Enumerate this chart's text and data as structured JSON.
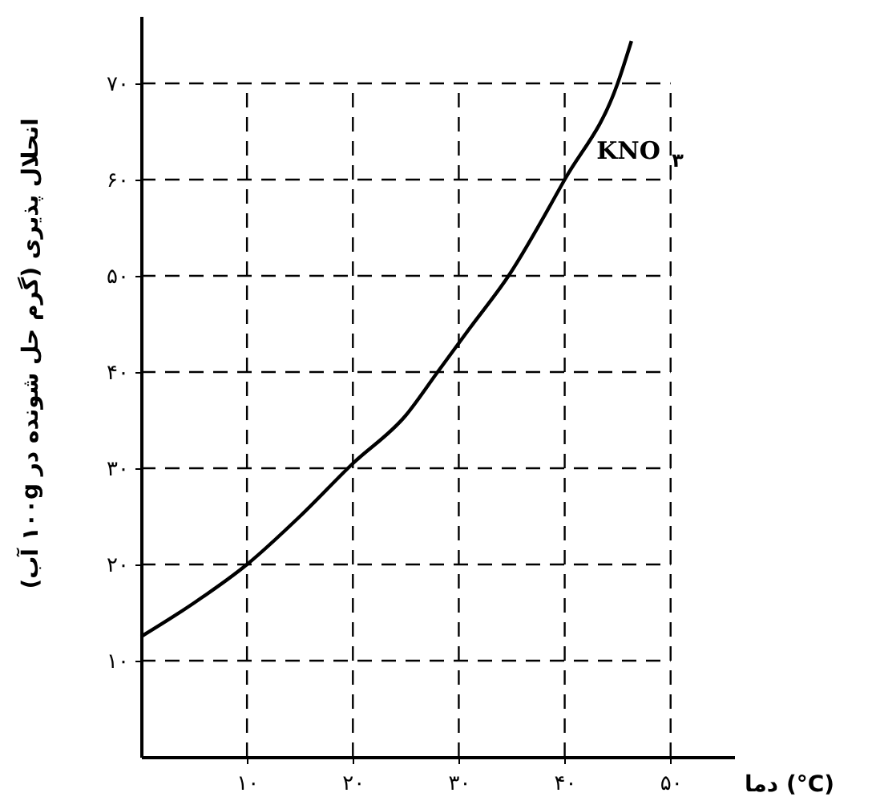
{
  "chart_data": {
    "type": "line",
    "xlabel": "دما (°C)",
    "ylabel": "انحلال پذیری (گرم حل شونده در ۱۰۰g آب)",
    "x": [
      0,
      5,
      10,
      15,
      20,
      25,
      28,
      31,
      34.7,
      40,
      45,
      46.3
    ],
    "series": [
      {
        "name": "KNO$_{۳}$",
        "color": "#000000",
        "values": [
          12.5,
          16,
          20,
          25,
          30.5,
          35.5,
          40,
          44.5,
          50,
          60,
          70,
          74.4
        ]
      }
    ],
    "xlim": [
      0,
      56
    ],
    "ylim": [
      0,
      77
    ],
    "xticks": [
      {
        "value": 10,
        "label": "۱۰"
      },
      {
        "value": 20,
        "label": "۲۰"
      },
      {
        "value": 30,
        "label": "۳۰"
      },
      {
        "value": 40,
        "label": "۴۰"
      },
      {
        "value": 50,
        "label": "۵۰"
      }
    ],
    "yticks": [
      {
        "value": 10,
        "label": "۱۰"
      },
      {
        "value": 20,
        "label": "۲۰"
      },
      {
        "value": 30,
        "label": "۳۰"
      },
      {
        "value": 40,
        "label": "۴۰"
      },
      {
        "value": 50,
        "label": "۵۰"
      },
      {
        "value": 60,
        "label": "۶۰"
      },
      {
        "value": 70,
        "label": "۷۰"
      }
    ],
    "grid": true,
    "line_style": "solid",
    "marker": "none"
  }
}
